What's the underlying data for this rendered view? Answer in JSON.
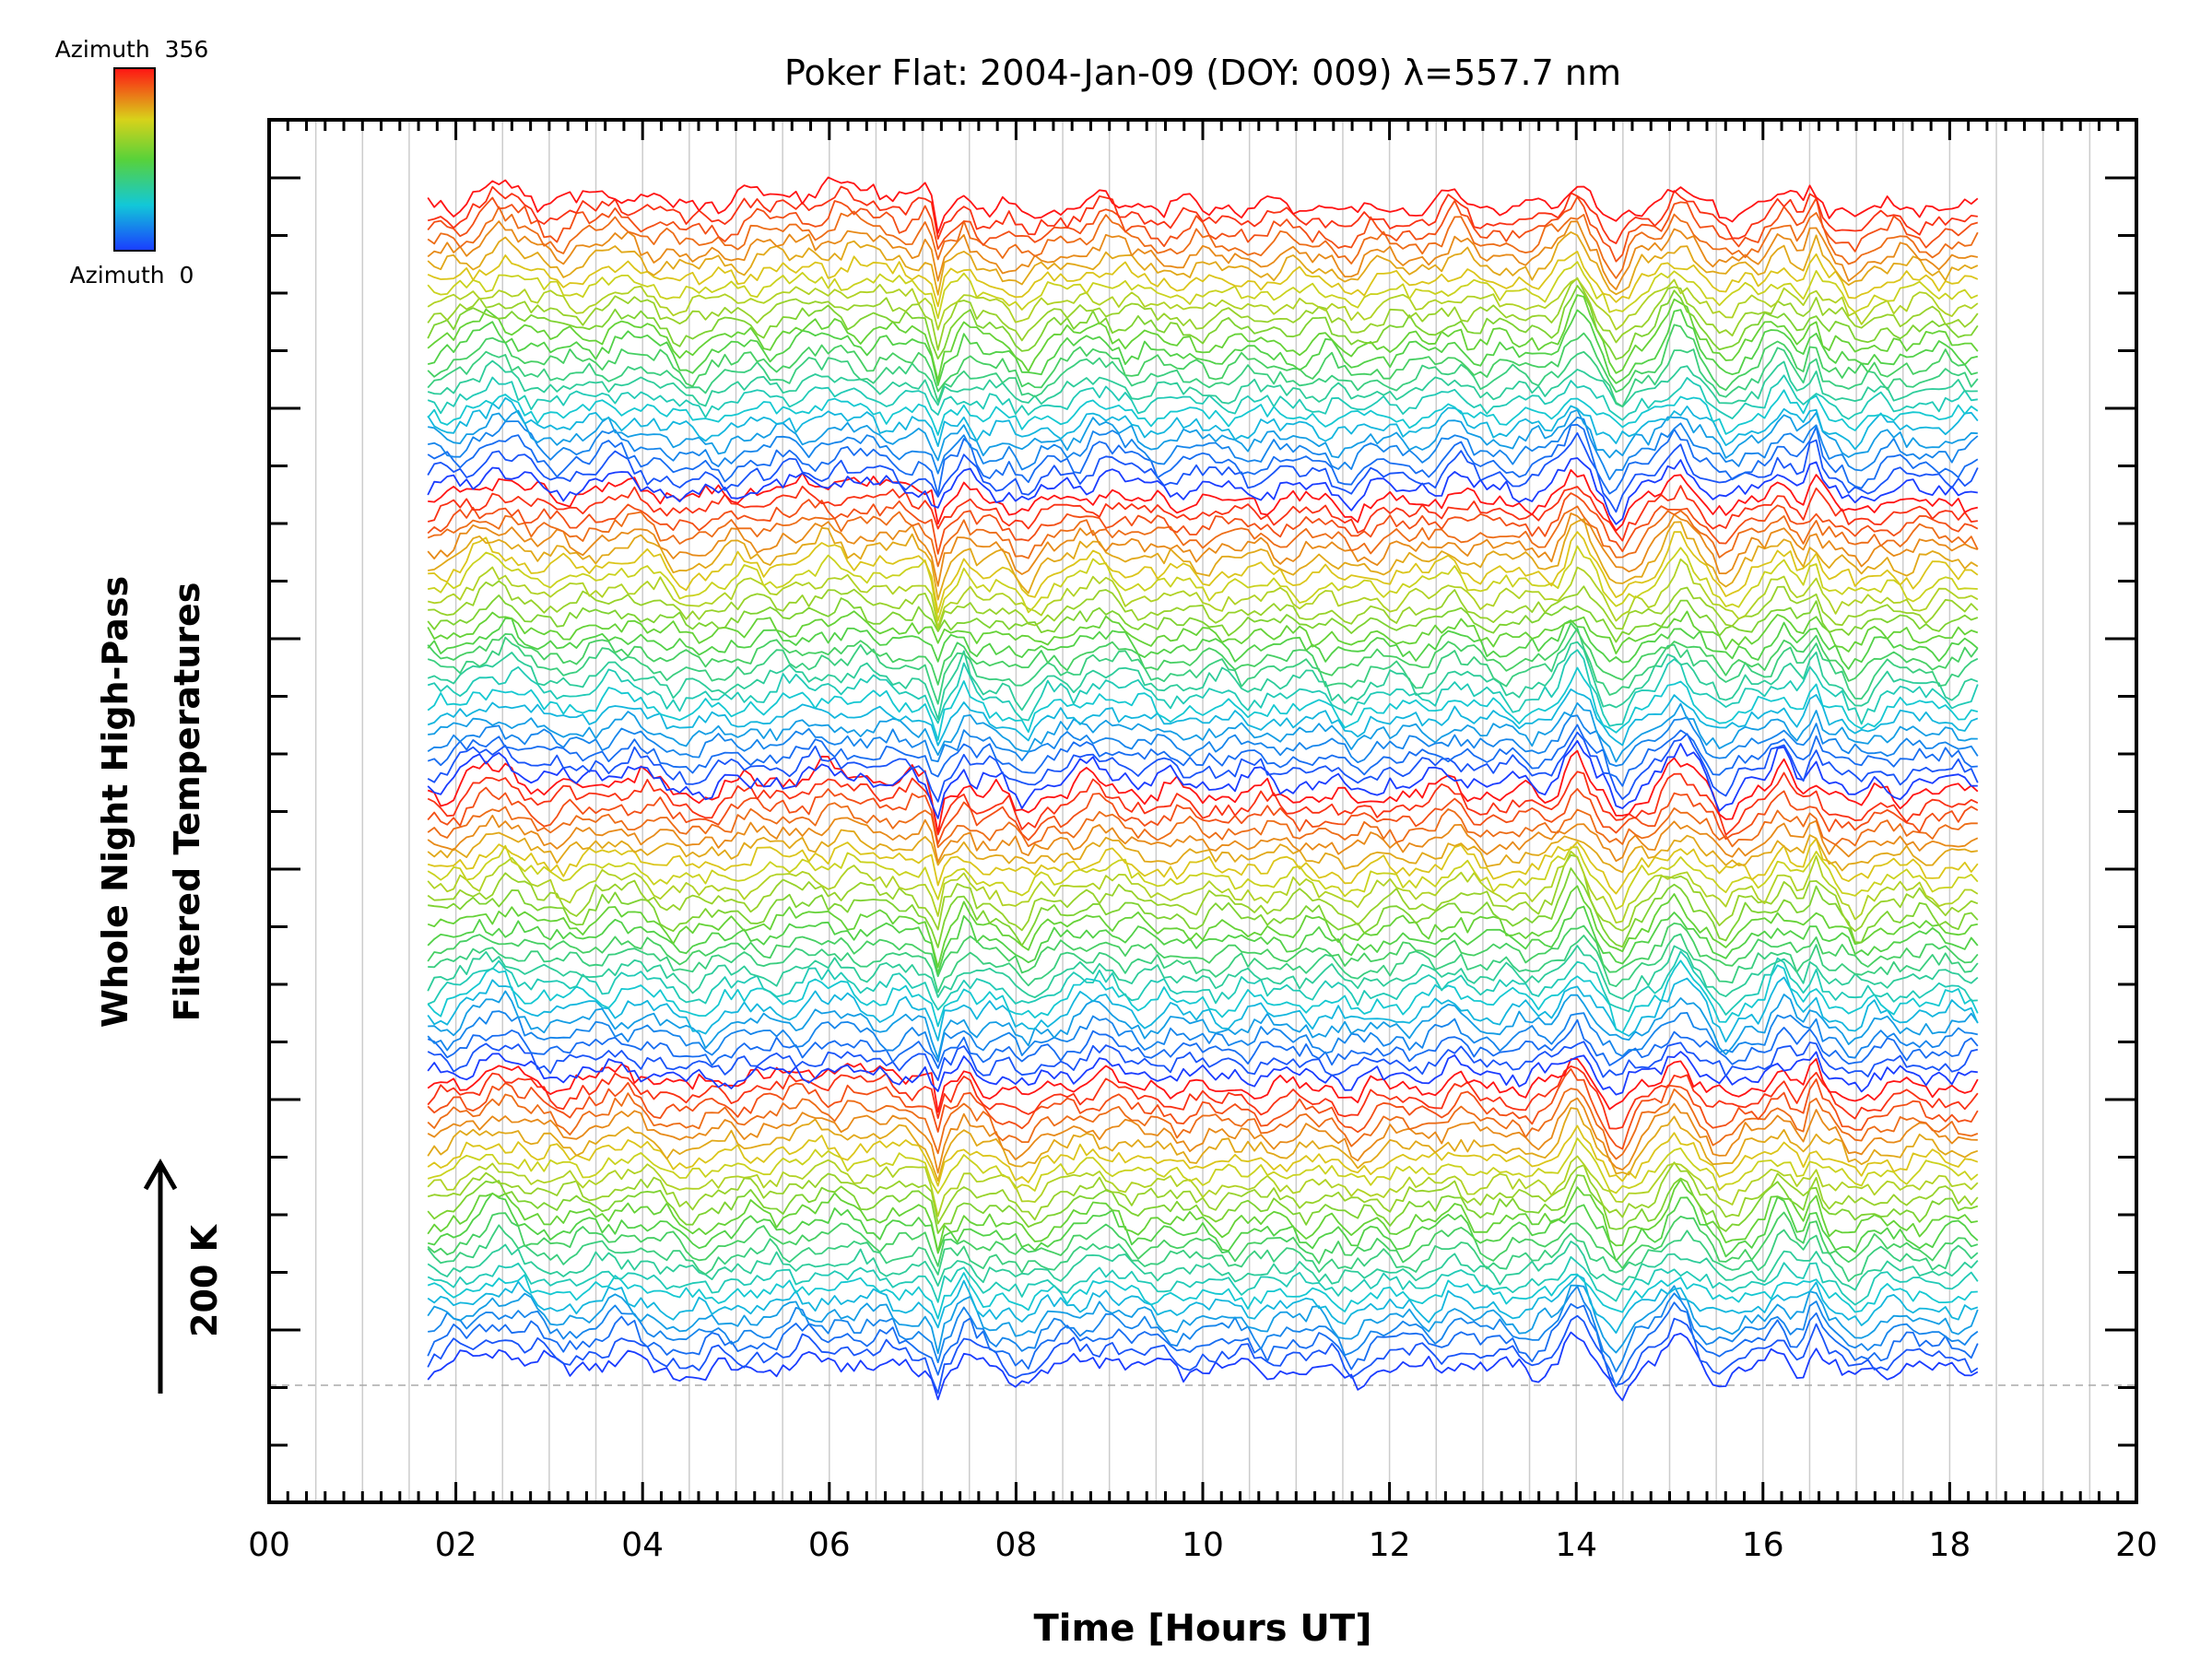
{
  "chart_data": {
    "type": "line",
    "title": "Poker Flat: 2004-Jan-09 (DOY: 009) λ=557.7 nm",
    "xlabel": "Time [Hours UT]",
    "ylabel_line1": "Whole Night High-Pass",
    "ylabel_line2": "Filtered Temperatures",
    "xlim": [
      0,
      20
    ],
    "x_tick_labels": [
      "00",
      "02",
      "04",
      "06",
      "08",
      "10",
      "12",
      "14",
      "16",
      "18",
      "20"
    ],
    "x_tick_values": [
      0,
      2,
      4,
      6,
      8,
      10,
      12,
      14,
      16,
      18,
      20
    ],
    "data_start_hour": 1.7,
    "data_end_hour": 18.3,
    "series_count": 96,
    "series_groups": 4,
    "curves_per_group": 24,
    "offset_scale": {
      "label": "200 K",
      "direction": "up"
    },
    "colorbar": {
      "top_label": "Azimuth  356",
      "bottom_label": "Azimuth  0",
      "azimuth_min": 0,
      "azimuth_max": 356
    },
    "colors": {
      "azimuth_low": "#1f3fff",
      "azimuth_mid": "#8cd21e",
      "azimuth_high": "#ff2a14",
      "grid": "#cccccc",
      "baseline": "#aaaaaa"
    }
  }
}
